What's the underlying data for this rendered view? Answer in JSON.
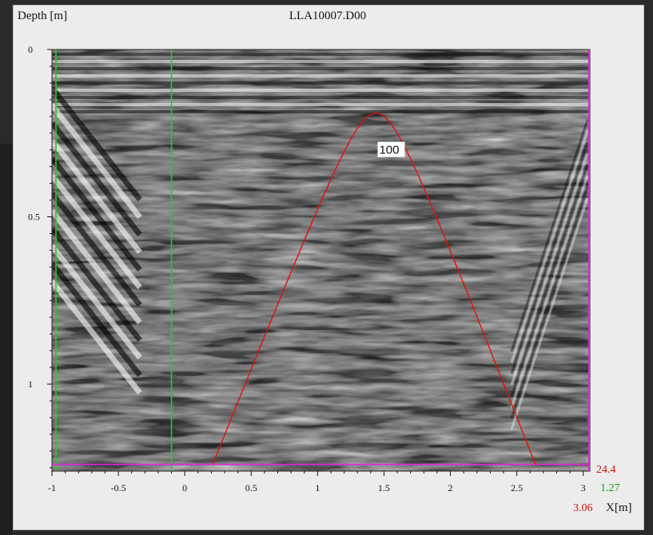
{
  "window": {
    "file_title": "LLA10007.D00",
    "y_axis_label": "Depth [m]",
    "x_axis_label": "X[m]"
  },
  "colors": {
    "panel_bg": "#ececec",
    "hyperbola": "#e01010",
    "cursor_lines": "#22cc22",
    "depth_cursor": "#e020e0",
    "readout_depth": "#d01010",
    "readout_green": "#1a9a1a",
    "readout_x": "#d01010"
  },
  "chart_data": {
    "type": "heatmap",
    "title": "LLA10007.D00",
    "xlabel": "X[m]",
    "ylabel": "Depth [m]",
    "xlim": [
      -1,
      3.05
    ],
    "ylim": [
      0,
      1.26
    ],
    "x_ticks": [
      -1,
      -0.5,
      0,
      0.5,
      1,
      1.5,
      2,
      2.5,
      3
    ],
    "x_tick_labels": [
      "-1",
      "-0.5",
      "0",
      "0.5",
      "1",
      "1.5",
      "2",
      "2.5",
      "3"
    ],
    "y_ticks": [
      0,
      0.5,
      1
    ],
    "y_tick_labels": [
      "0",
      "0.5",
      "1"
    ],
    "grid": false,
    "hyperbola": {
      "label": "100",
      "apex_x": 1.44,
      "apex_depth": 0.19,
      "left_end_x": 0.21,
      "right_end_x": 2.64,
      "end_depth": 1.24
    },
    "cursors": {
      "vertical_x": [
        -0.97,
        -0.1
      ],
      "horizontal_depth": 1.24
    },
    "readouts": {
      "depth": "24.4",
      "green": "1.27",
      "x": "3.06"
    }
  }
}
